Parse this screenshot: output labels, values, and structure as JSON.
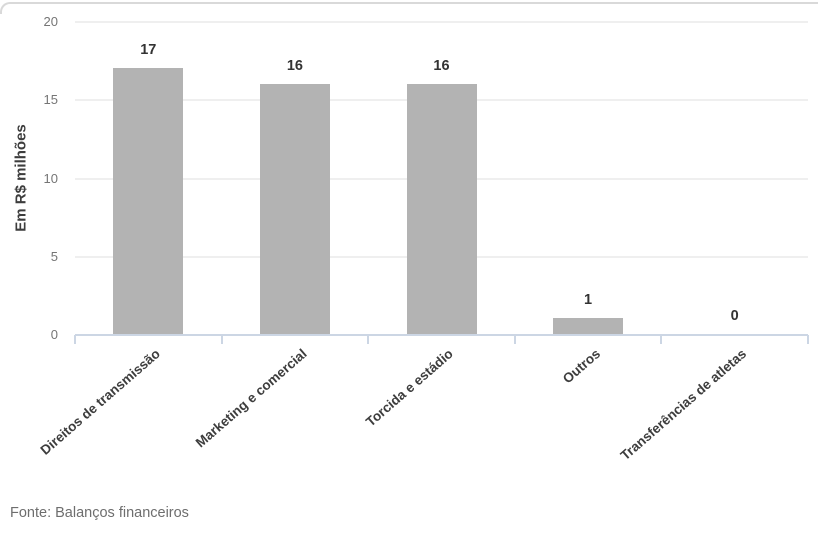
{
  "chart_data": {
    "type": "bar",
    "categories": [
      "Direitos de transmissão",
      "Marketing e comercial",
      "Torcida e estádio",
      "Outros",
      "Transferências de atletas"
    ],
    "values": [
      17,
      16,
      16,
      1,
      0
    ],
    "title": "",
    "xlabel": "",
    "ylabel": "Em R$ milhões",
    "ylim": [
      0,
      20
    ],
    "yticks": [
      0,
      5,
      10,
      15,
      20
    ],
    "grid": true,
    "legend": false,
    "bar_color": "#b3b3b3"
  },
  "footer": {
    "source": "Fonte: Balanços financeiros"
  },
  "colors": {
    "bar": "#b3b3b3",
    "grid_line": "#efefef",
    "axis_line": "#ccd6e4",
    "value_label": "#333333",
    "category_label": "#3d3d3d",
    "y_tick_label": "#757575",
    "y_title": "#3d3d3d",
    "source_text": "#6e6e6e",
    "card_border": "#d9d9d9",
    "background": "#ffffff"
  }
}
